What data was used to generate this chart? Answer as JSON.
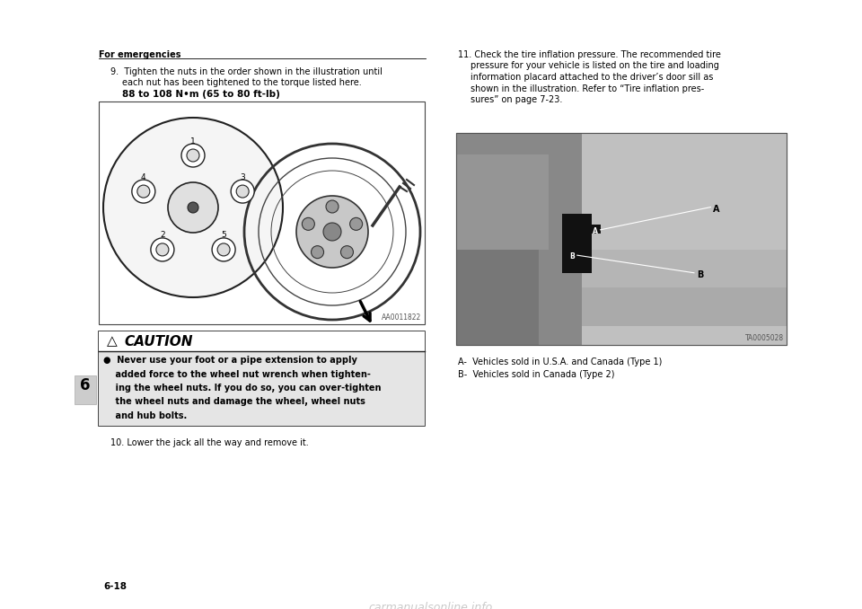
{
  "bg_color": "#ffffff",
  "section_label": "For emergencies",
  "chapter_num": "6",
  "page_num": "6-18",
  "step9_line1": "9.  Tighten the nuts in the order shown in the illustration until",
  "step9_line2": "each nut has been tightened to the torque listed here.",
  "step9_bold": "88 to 108 N•m (65 to 80 ft-lb)",
  "caution_title": "CAUTION",
  "bullet_lines": [
    "●  Never use your foot or a pipe extension to apply",
    "    added force to the wheel nut wrench when tighten-",
    "    ing the wheel nuts. If you do so, you can over-tighten",
    "    the wheel nuts and damage the wheel, wheel nuts",
    "    and hub bolts."
  ],
  "step10_text": "10. Lower the jack all the way and remove it.",
  "step11_lines": [
    "11. Check the tire inflation pressure. The recommended tire",
    "pressure for your vehicle is listed on the tire and loading",
    "information placard attached to the driver’s door sill as",
    "shown in the illustration. Refer to “Tire inflation pres-",
    "sures” on page 7-23."
  ],
  "label_a": "A-  Vehicles sold in U.S.A. and Canada (Type 1)",
  "label_b": "B-  Vehicles sold in Canada (Type 2)",
  "img_code1": "AA0011822",
  "img_code2": "TA0005028",
  "watermark": "carmanualsonline.info"
}
